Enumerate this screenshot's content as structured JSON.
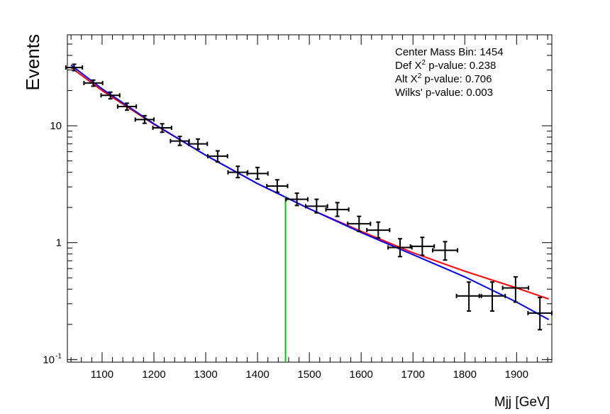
{
  "chart_data": {
    "type": "scatter",
    "xlabel": "Mjj [GeV]",
    "ylabel": "Events",
    "xlim": [
      1033,
      1968
    ],
    "ylim": [
      0.095,
      60
    ],
    "yscale": "log",
    "x_ticks": [
      1100,
      1200,
      1300,
      1400,
      1500,
      1600,
      1700,
      1800,
      1900
    ],
    "y_ticks": [
      {
        "value": 0.1,
        "label": "10",
        "sup": "-1"
      },
      {
        "value": 1,
        "label": "1",
        "sup": ""
      },
      {
        "value": 10,
        "label": "10",
        "sup": ""
      }
    ],
    "grid": false,
    "annotations": [
      {
        "text": "Center Mass Bin: 1454"
      },
      {
        "text": "Def X",
        "sup": "2",
        "rest": " p-value: 0.238"
      },
      {
        "text": "Alt X",
        "sup": "2",
        "rest": " p-value: 0.706"
      },
      {
        "text": "Wilks' p-value: 0.003"
      }
    ],
    "signal_marker": {
      "x": 1454,
      "y_top": 2.5,
      "color": "#00c000"
    },
    "data_points": [
      {
        "x": 1046,
        "xerr": 16,
        "y": 31.5,
        "ylo": 29.6,
        "yhi": 33.6
      },
      {
        "x": 1083,
        "xerr": 18,
        "y": 23.2,
        "ylo": 21.8,
        "yhi": 24.6
      },
      {
        "x": 1116,
        "xerr": 18,
        "y": 18.2,
        "ylo": 17.0,
        "yhi": 19.4
      },
      {
        "x": 1148,
        "xerr": 18,
        "y": 14.6,
        "ylo": 13.6,
        "yhi": 15.6
      },
      {
        "x": 1182,
        "xerr": 18,
        "y": 11.3,
        "ylo": 10.5,
        "yhi": 12.2
      },
      {
        "x": 1216,
        "xerr": 18,
        "y": 9.6,
        "ylo": 8.8,
        "yhi": 10.4
      },
      {
        "x": 1250,
        "xerr": 18,
        "y": 7.4,
        "ylo": 6.8,
        "yhi": 8.1
      },
      {
        "x": 1285,
        "xerr": 18,
        "y": 7.0,
        "ylo": 6.3,
        "yhi": 7.7
      },
      {
        "x": 1323,
        "xerr": 19,
        "y": 5.5,
        "ylo": 4.9,
        "yhi": 6.1
      },
      {
        "x": 1362,
        "xerr": 19,
        "y": 4.0,
        "ylo": 3.6,
        "yhi": 4.5
      },
      {
        "x": 1400,
        "xerr": 20,
        "y": 3.9,
        "ylo": 3.5,
        "yhi": 4.4
      },
      {
        "x": 1438,
        "xerr": 20,
        "y": 3.05,
        "ylo": 2.7,
        "yhi": 3.45
      },
      {
        "x": 1476,
        "xerr": 21,
        "y": 2.35,
        "ylo": 2.08,
        "yhi": 2.65
      },
      {
        "x": 1514,
        "xerr": 21,
        "y": 2.05,
        "ylo": 1.8,
        "yhi": 2.35
      },
      {
        "x": 1554,
        "xerr": 22,
        "y": 1.92,
        "ylo": 1.68,
        "yhi": 2.2
      },
      {
        "x": 1596,
        "xerr": 22,
        "y": 1.45,
        "ylo": 1.25,
        "yhi": 1.68
      },
      {
        "x": 1633,
        "xerr": 22,
        "y": 1.28,
        "ylo": 1.1,
        "yhi": 1.5
      },
      {
        "x": 1675,
        "xerr": 23,
        "y": 0.91,
        "ylo": 0.76,
        "yhi": 1.08
      },
      {
        "x": 1718,
        "xerr": 23,
        "y": 0.93,
        "ylo": 0.78,
        "yhi": 1.11
      },
      {
        "x": 1762,
        "xerr": 24,
        "y": 0.86,
        "ylo": 0.71,
        "yhi": 1.02
      },
      {
        "x": 1808,
        "xerr": 24,
        "y": 0.35,
        "ylo": 0.26,
        "yhi": 0.46
      },
      {
        "x": 1853,
        "xerr": 25,
        "y": 0.35,
        "ylo": 0.26,
        "yhi": 0.46
      },
      {
        "x": 1898,
        "xerr": 25,
        "y": 0.41,
        "ylo": 0.31,
        "yhi": 0.51
      },
      {
        "x": 1945,
        "xerr": 23,
        "y": 0.25,
        "ylo": 0.18,
        "yhi": 0.34
      }
    ],
    "series": [
      {
        "type": "line",
        "color": "#ff0000",
        "x": [
          1040,
          1100,
          1200,
          1300,
          1400,
          1500,
          1600,
          1700,
          1800,
          1900,
          1962
        ],
        "y": [
          31.5,
          20.0,
          10.3,
          5.6,
          3.2,
          1.95,
          1.25,
          0.82,
          0.57,
          0.41,
          0.33
        ]
      },
      {
        "type": "line",
        "color": "#0000ff",
        "x": [
          1040,
          1100,
          1200,
          1300,
          1400,
          1500,
          1600,
          1700,
          1800,
          1900,
          1962
        ],
        "y": [
          33.0,
          20.7,
          10.4,
          5.6,
          3.2,
          1.95,
          1.22,
          0.79,
          0.51,
          0.31,
          0.22
        ]
      }
    ]
  }
}
